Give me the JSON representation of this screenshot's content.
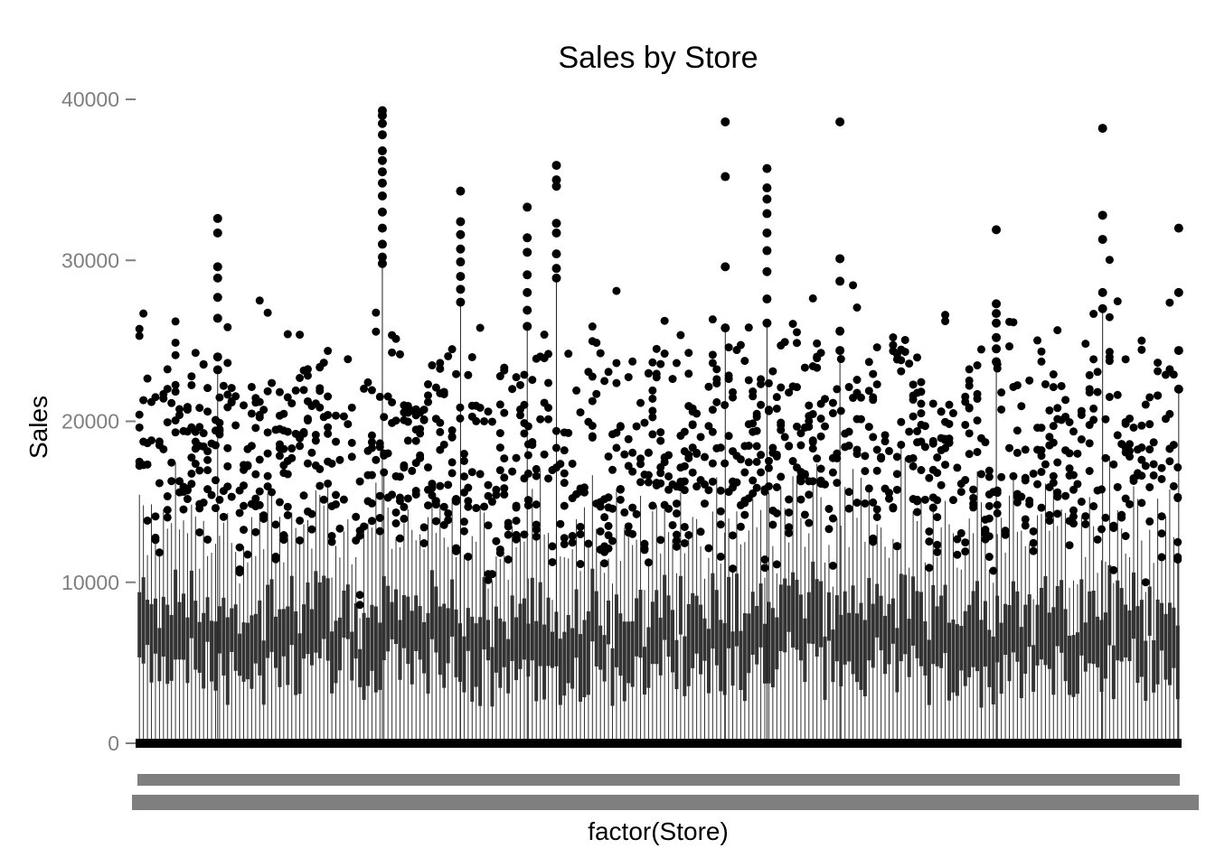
{
  "chart_data": {
    "type": "boxplot",
    "title": "Sales by Store",
    "xlabel": "factor(Store)",
    "ylabel": "Sales",
    "ylim": [
      0,
      40000
    ],
    "yticks": [
      0,
      10000,
      20000,
      30000,
      40000
    ],
    "ytick_labels": [
      "0",
      "10000",
      "20000",
      "30000",
      "40000"
    ],
    "x_categories_range": [
      1,
      1115
    ],
    "x_tick_labels_note": "tick labels overlap into an unreadable grey bar",
    "n_boxes_drawn": 260,
    "grid": false,
    "legend": "none",
    "colors": {
      "box_fill": "#333333",
      "outlier": "#000000",
      "tick_text": "#7f7f7f",
      "tick_mark": "#7f7f7f"
    },
    "highlight_outliers": [
      {
        "store_fraction": 0.235,
        "values": [
          39300,
          39000,
          38500,
          37800,
          36800,
          36200,
          35500,
          34800,
          34000,
          33000,
          32000,
          31000,
          30200,
          29800
        ]
      },
      {
        "store_fraction": 0.564,
        "values": [
          38600,
          35200,
          29600,
          25800
        ]
      },
      {
        "store_fraction": 0.674,
        "values": [
          38600,
          30100,
          28700,
          25600,
          24400
        ]
      },
      {
        "store_fraction": 0.926,
        "values": [
          38200,
          32800,
          31300,
          28000,
          27000
        ]
      },
      {
        "store_fraction": 0.402,
        "values": [
          35900,
          35000,
          34600,
          32300,
          31700,
          30400,
          29500,
          28900
        ]
      },
      {
        "store_fraction": 0.604,
        "values": [
          35700,
          34500,
          33800,
          32900,
          31700,
          30600,
          29300,
          27600,
          26100
        ]
      },
      {
        "store_fraction": 0.077,
        "values": [
          32600,
          31700,
          29600,
          28900,
          27700,
          26400,
          24000,
          23200
        ]
      },
      {
        "store_fraction": 0.31,
        "values": [
          34300,
          32400,
          31600,
          30700,
          29900,
          29000,
          28200,
          27400
        ]
      },
      {
        "store_fraction": 0.374,
        "values": [
          33300,
          31400,
          30500,
          29100,
          28000,
          26900,
          25900
        ]
      },
      {
        "store_fraction": 0.824,
        "values": [
          31900,
          27300,
          26700,
          26100,
          25200,
          24500,
          23700
        ]
      },
      {
        "store_fraction": 0.999,
        "values": [
          32000,
          28000,
          24400,
          22000
        ]
      }
    ]
  }
}
